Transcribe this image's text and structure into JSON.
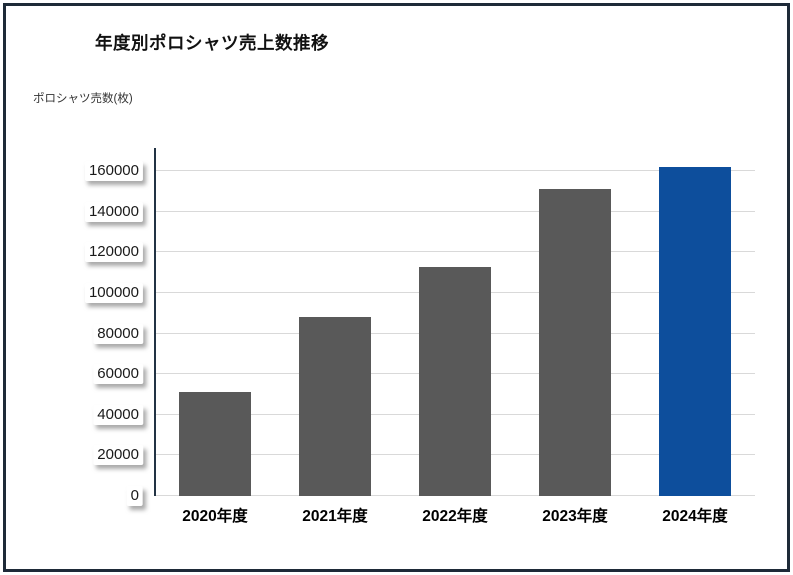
{
  "window": {
    "background": "#ffffff",
    "border_color": "#1e2a38"
  },
  "chart_data": {
    "type": "bar",
    "title": "年度別ポロシャツ売上数推移",
    "ylabel": "ポロシャツ売数(枚)",
    "xlabel": "",
    "categories": [
      "2020年度",
      "2021年度",
      "2022年度",
      "2023年度",
      "2024年度"
    ],
    "values": [
      51000,
      88000,
      113000,
      151000,
      162000
    ],
    "yticks": [
      0,
      20000,
      40000,
      60000,
      80000,
      100000,
      120000,
      140000,
      160000
    ],
    "ylim": [
      0,
      171000
    ],
    "grid": true,
    "legend": false,
    "highlight_index": 4,
    "colors": {
      "bar_default": "#595959",
      "bar_highlight": "#0d4e9c",
      "gridline": "#d9d9d9",
      "axis_line": "#223344",
      "tick_label_bg": "#ffffff"
    }
  }
}
